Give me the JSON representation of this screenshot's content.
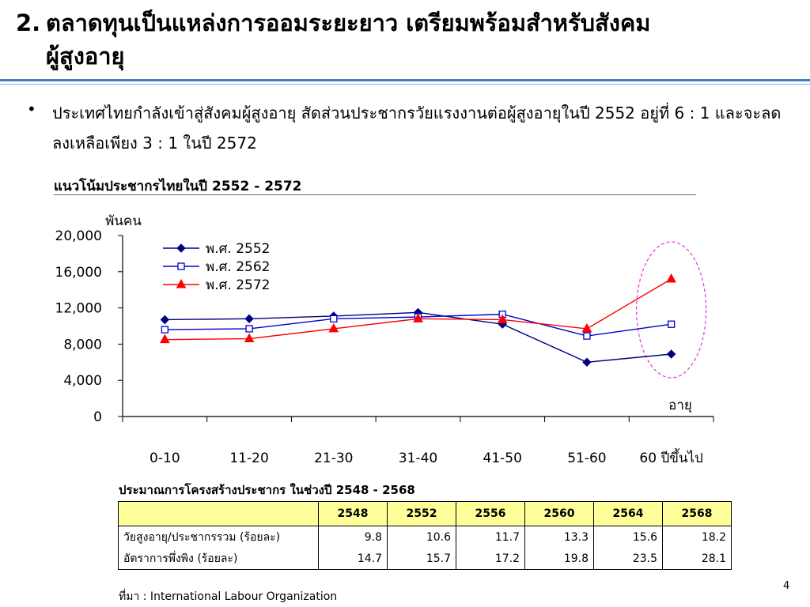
{
  "title": {
    "number": "2.",
    "line1": "ตลาดทุนเป็นแหล่งการออมระยะยาว เตรียมพร้อมสำหรับสังคม",
    "line2": "ผู้สูงอายุ"
  },
  "bullet": {
    "symbol": "•",
    "text": "ประเทศไทยกำลังเข้าสู่สังคมผู้สูงอายุ สัดส่วนประชากรวัยแรงงานต่อผู้สูงอายุในปี 2552  อยู่ที่ 6 : 1 และจะลดลงเหลือเพียง 3 : 1 ในปี 2572"
  },
  "chart_heading": "แนวโน้มประชากรไทยในปี 2552 - 2572",
  "chart_data": {
    "type": "line",
    "ylabel": "พันคน",
    "xlabel": "อายุ",
    "categories": [
      "0-10",
      "11-20",
      "21-30",
      "31-40",
      "41-50",
      "51-60",
      "60 ปีขึ้นไป"
    ],
    "ylim": [
      0,
      20000
    ],
    "yticks": [
      "0",
      "4,000",
      "8,000",
      "12,000",
      "16,000",
      "20,000"
    ],
    "ytick_values": [
      0,
      4000,
      8000,
      12000,
      16000,
      20000
    ],
    "legend_position": "top-left",
    "grid": false,
    "series": [
      {
        "name": "พ.ศ. 2552",
        "color": "#000080",
        "marker": "diamond",
        "values": [
          10700,
          10800,
          11100,
          11500,
          10200,
          6000,
          6900
        ]
      },
      {
        "name": "พ.ศ. 2562",
        "color": "#0000cc",
        "marker": "square-open",
        "values": [
          9600,
          9700,
          10800,
          11000,
          11300,
          8900,
          10200
        ]
      },
      {
        "name": "พ.ศ. 2572",
        "color": "#ff0000",
        "marker": "triangle",
        "values": [
          8500,
          8600,
          9700,
          10800,
          10700,
          9700,
          15200
        ]
      }
    ],
    "highlight_color": "#e040e0"
  },
  "table": {
    "caption": "ประมาณการโครงสร้างประชากร ในช่วงปี 2548 - 2568",
    "headers": [
      "",
      "2548",
      "2552",
      "2556",
      "2560",
      "2564",
      "2568"
    ],
    "rows": [
      [
        "วัยสูงอายุ/ประชากรรวม (ร้อยละ)",
        "9.8",
        "10.6",
        "11.7",
        "13.3",
        "15.6",
        "18.2"
      ],
      [
        "อัตราการพึ่งพิง (ร้อยละ)",
        "14.7",
        "15.7",
        "17.2",
        "19.8",
        "23.5",
        "28.1"
      ]
    ]
  },
  "source": "ที่มา : International Labour Organization",
  "page_number": "4"
}
